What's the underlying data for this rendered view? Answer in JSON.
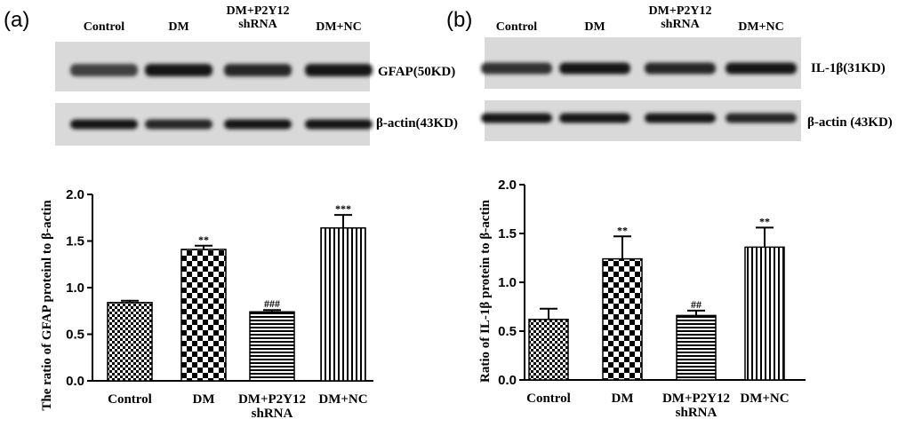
{
  "panels": [
    {
      "letter": "(a)",
      "blot": {
        "lanes": [
          "Control",
          "DM",
          "DM+P2Y12\nshRNA",
          "DM+NC"
        ],
        "rows": [
          {
            "label": "GFAP(50KD)",
            "intensity": [
              0.75,
              0.9,
              0.85,
              0.9
            ]
          },
          {
            "label": "β-actin(43KD)",
            "intensity": [
              0.9,
              0.85,
              0.9,
              0.9
            ]
          }
        ]
      }
    },
    {
      "letter": "(b)",
      "blot": {
        "lanes": [
          "Control",
          "DM",
          "DM+P2Y12\nshRNA",
          "DM+NC"
        ],
        "rows": [
          {
            "label": "IL-1β(31KD)",
            "intensity": [
              0.8,
              0.9,
              0.85,
              0.9
            ]
          },
          {
            "label": "β-actin (43KD)",
            "intensity": [
              0.9,
              0.9,
              0.9,
              0.85
            ]
          }
        ]
      }
    }
  ],
  "chart_data": [
    {
      "type": "bar",
      "categories": [
        "Control",
        "DM",
        "DM+P2Y12\nshRNA",
        "DM+NC"
      ],
      "values": [
        0.84,
        1.41,
        0.74,
        1.64
      ],
      "errors": [
        0.02,
        0.04,
        0.02,
        0.14
      ],
      "significance": [
        "",
        "**",
        "###",
        "***"
      ],
      "patterns": [
        "checker-small",
        "checker-large",
        "hlines",
        "vlines"
      ],
      "ylabel": "The ratio of GFAP proteinl to β-actin",
      "xlabel": "",
      "ylim": [
        0,
        2.0
      ],
      "yticks": [
        "0.0",
        "0.5",
        "1.0",
        "1.5",
        "2.0"
      ]
    },
    {
      "type": "bar",
      "categories": [
        "Control",
        "DM",
        "DM+P2Y12\nshRNA",
        "DM+NC"
      ],
      "values": [
        0.62,
        1.24,
        0.66,
        1.36
      ],
      "errors": [
        0.11,
        0.23,
        0.05,
        0.2
      ],
      "significance": [
        "",
        "**",
        "##",
        "**"
      ],
      "patterns": [
        "checker-small",
        "checker-large",
        "hlines",
        "vlines"
      ],
      "ylabel": "Ratio of IL-1β protein to β-actin",
      "xlabel": "",
      "ylim": [
        0,
        2.0
      ],
      "yticks": [
        "0.0",
        "0.5",
        "1.0",
        "1.5",
        "2.0"
      ]
    }
  ]
}
